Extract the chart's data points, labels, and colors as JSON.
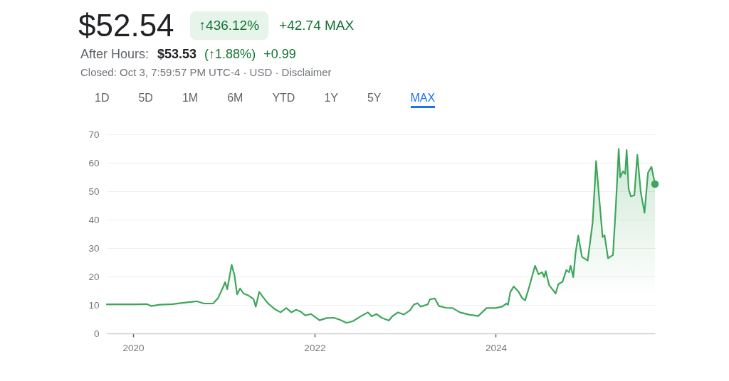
{
  "chart_data": {
    "type": "area",
    "title": "$52.54",
    "annotations": [
      "↑436.12%",
      "+42.74 MAX",
      "After Hours:",
      "$53.53",
      "(↑1.88%)",
      "+0.99",
      "Closed: Oct 3, 7:59:57 PM UTC-4 · USD · Disclaimer",
      "1D",
      "5D",
      "1M",
      "6M",
      "YTD",
      "1Y",
      "5Y",
      "MAX"
    ],
    "x": [
      "2019-09-17",
      "2019-11-13",
      "2020-01-08",
      "2020-02-25",
      "2020-03-14",
      "2020-04-17",
      "2020-06-08",
      "2020-07-07",
      "2020-09-13",
      "2020-10-12",
      "2020-11-18",
      "2020-12-08",
      "2020-12-22",
      "2021-01-06",
      "2021-01-14",
      "2021-02-01",
      "2021-02-12",
      "2021-02-23",
      "2021-03-07",
      "2021-03-21",
      "2021-04-10",
      "2021-04-30",
      "2021-05-09",
      "2021-05-23",
      "2021-06-06",
      "2021-06-27",
      "2021-07-25",
      "2021-08-17",
      "2021-09-09",
      "2021-09-29",
      "2021-10-19",
      "2021-11-05",
      "2021-11-25",
      "2021-12-18",
      "2022-01-21",
      "2022-02-19",
      "2022-03-20",
      "2022-04-12",
      "2022-05-10",
      "2022-06-05",
      "2022-07-04",
      "2022-08-04",
      "2022-08-19",
      "2022-09-08",
      "2022-09-28",
      "2022-10-27",
      "2022-11-10",
      "2022-12-03",
      "2022-12-26",
      "2023-01-20",
      "2023-02-06",
      "2023-02-20",
      "2023-03-04",
      "2023-04-02",
      "2023-04-10",
      "2023-04-30",
      "2023-05-17",
      "2023-06-15",
      "2023-07-11",
      "2023-08-09",
      "2023-09-15",
      "2023-10-22",
      "2023-11-25",
      "2023-12-30",
      "2024-01-27",
      "2024-02-13",
      "2024-02-19",
      "2024-02-28",
      "2024-03-13",
      "2024-04-02",
      "2024-04-16",
      "2024-04-28",
      "2024-05-15",
      "2024-06-07",
      "2024-06-21",
      "2024-07-06",
      "2024-07-14",
      "2024-07-20",
      "2024-08-03",
      "2024-08-15",
      "2024-08-29",
      "2024-09-09",
      "2024-09-26",
      "2024-10-11",
      "2024-10-22",
      "2024-10-28",
      "2024-11-08",
      "2024-11-17",
      "2024-11-28",
      "2024-12-13",
      "2025-01-05",
      "2025-01-25",
      "2025-02-08",
      "2025-02-19",
      "2025-03-06",
      "2025-03-14",
      "2025-03-28",
      "2025-04-17",
      "2025-04-29",
      "2025-05-10",
      "2025-05-16",
      "2025-05-27",
      "2025-06-05",
      "2025-06-11",
      "2025-06-19",
      "2025-06-28",
      "2025-07-12",
      "2025-07-24",
      "2025-08-07",
      "2025-08-22",
      "2025-09-05",
      "2025-09-19",
      "2025-10-03"
    ],
    "series": [
      {
        "color": "#3ea65c",
        "values": [
          10.2,
          10.2,
          10.2,
          10.3,
          9.6,
          10.1,
          10.3,
          10.6,
          11.3,
          10.5,
          10.5,
          12.4,
          15,
          18,
          15.5,
          24.1,
          20.6,
          13.7,
          15.8,
          14,
          13.3,
          12.1,
          9.4,
          14.6,
          12.9,
          10.6,
          8.5,
          7.4,
          8.9,
          7.4,
          8.3,
          7.7,
          6.3,
          6.8,
          4.6,
          5.4,
          5.5,
          4.8,
          3.7,
          4.3,
          5.9,
          7.4,
          6.0,
          6.8,
          5.5,
          4.5,
          6.0,
          7.4,
          6.6,
          8.1,
          10.2,
          10.6,
          9.4,
          10.2,
          11.9,
          12.3,
          9.6,
          9.0,
          8.9,
          7.4,
          6.6,
          6.1,
          8.9,
          8.9,
          9.4,
          10.5,
          10.0,
          14.4,
          16.5,
          14.6,
          12.4,
          11.6,
          16.5,
          23.8,
          20.8,
          21.5,
          19.8,
          21.9,
          16.9,
          15.6,
          14.0,
          17.3,
          18.2,
          22.3,
          21.5,
          23.8,
          19.8,
          28.1,
          34.4,
          26.9,
          25.6,
          39.0,
          60.6,
          49.0,
          33.9,
          34.5,
          26.4,
          27.6,
          45.7,
          64.9,
          54.9,
          57,
          56.1,
          64.5,
          50.8,
          48.2,
          48.6,
          62.8,
          49.5,
          42.4,
          56.5,
          58.6,
          52.5
        ]
      },
      {
        "type": "scatter",
        "color": "#3ea65c",
        "x": [
          "2025-10-03"
        ],
        "values": [
          52.5
        ]
      }
    ],
    "xlim": [
      "2019-09-17",
      "2025-10-03"
    ],
    "xticks": [
      "2020",
      "2022",
      "2024"
    ],
    "ylim": [
      0,
      70
    ],
    "yticks": [
      0,
      10,
      20,
      30,
      40,
      50,
      60,
      70
    ],
    "grid": "y"
  }
}
